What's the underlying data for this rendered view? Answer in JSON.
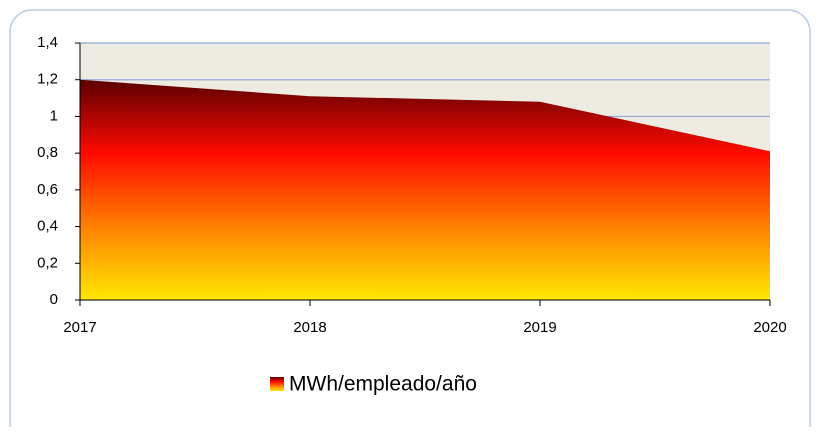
{
  "chart_data": {
    "type": "area",
    "categories": [
      "2017",
      "2018",
      "2019",
      "2020"
    ],
    "series": [
      {
        "name": "MWh/empleado/año",
        "colors": [
          "#5a0000",
          "#ff0a00",
          "#ff8000",
          "#ffe800"
        ],
        "values": [
          1.2,
          1.11,
          1.08,
          0.81
        ]
      }
    ],
    "ylim": [
      0,
      1.4
    ],
    "yticks": [
      0,
      {
        "value": 0.2,
        "label": "0,2"
      },
      {
        "value": 0.4,
        "label": "0,4"
      },
      {
        "value": 0.6,
        "label": "0,6"
      },
      {
        "value": 0.8,
        "label": "0,8"
      },
      1,
      {
        "value": 1.2,
        "label": "1,2"
      },
      {
        "value": 1.4,
        "label": "1,4"
      }
    ],
    "grid": true,
    "plot_background": "#eeebe3",
    "legend": "bottom"
  }
}
